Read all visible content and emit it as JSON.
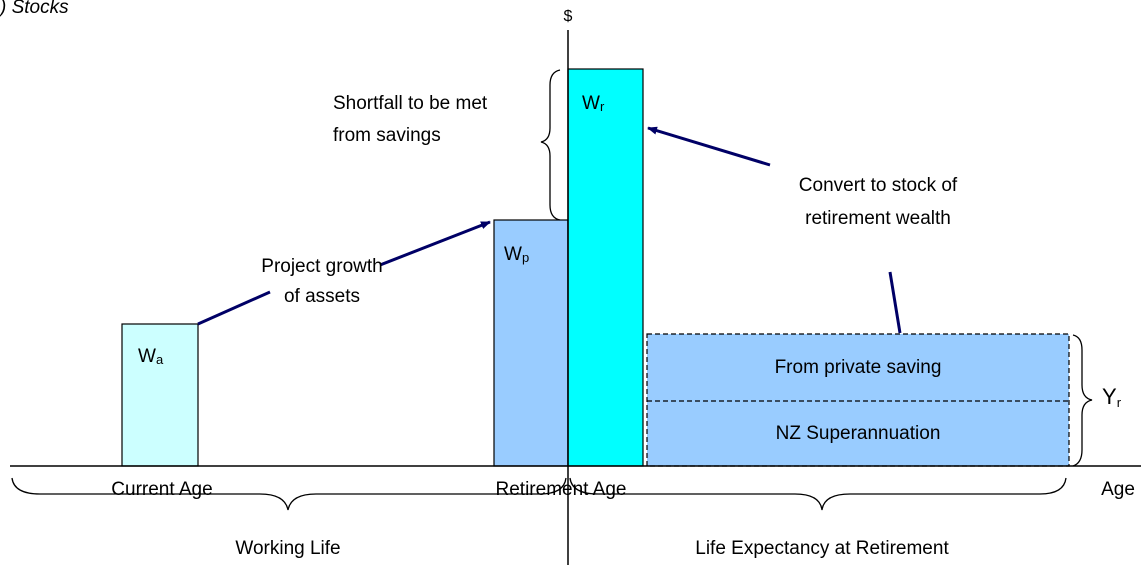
{
  "header": {
    "title": ") Stocks"
  },
  "axis": {
    "y_label": "$",
    "x_label": "Age"
  },
  "bars": [
    {
      "label": "W",
      "sub": "a"
    },
    {
      "label": "W",
      "sub": "p"
    },
    {
      "label": "W",
      "sub": "r"
    }
  ],
  "annotations": {
    "shortfall": [
      "Shortfall to be met",
      "from savings"
    ],
    "project": [
      "Project growth",
      "of assets"
    ],
    "convert": [
      "Convert to stock of",
      "retirement wealth"
    ]
  },
  "income": {
    "top": "From private saving",
    "bottom": "NZ Superannuation",
    "label": "Y",
    "sub": "r"
  },
  "ages": {
    "current": "Current Age",
    "retirement": "Retirement Age"
  },
  "periods": {
    "working": "Working Life",
    "expectancy": "Life Expectancy at Retirement"
  }
}
